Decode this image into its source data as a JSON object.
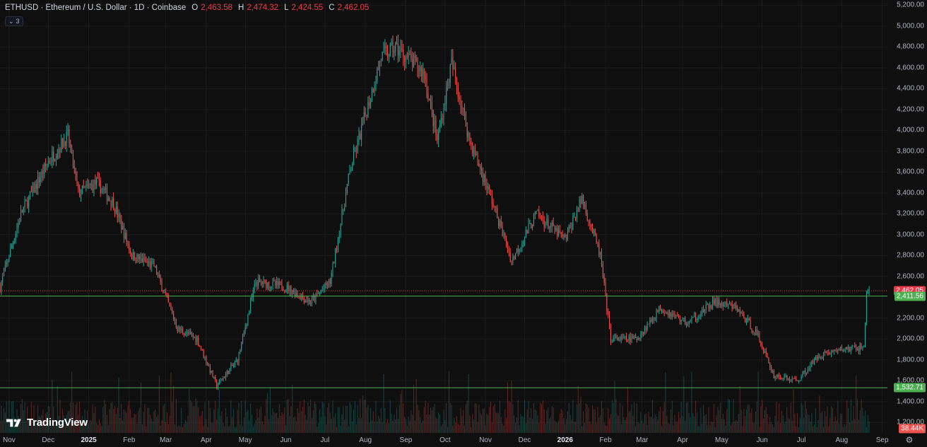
{
  "legend": {
    "symbol_title": "ETHUSD · Ethereum / U.S. Dollar · 1D · Coinbase",
    "o_key": "O",
    "o_val": "2,463.58",
    "h_key": "H",
    "h_val": "2,474.32",
    "l_key": "L",
    "l_val": "2,424.55",
    "c_key": "C",
    "c_val": "2,462.05",
    "indicator_count": "3"
  },
  "price_axis": {
    "ticks": [
      "5,200.00",
      "5,000.00",
      "4,800.00",
      "4,600.00",
      "4,400.00",
      "4,200.00",
      "4,000.00",
      "3,800.00",
      "3,600.00",
      "3,400.00",
      "3,200.00",
      "3,000.00",
      "2,800.00",
      "2,600.00",
      "2,200.00",
      "2,000.00",
      "1,800.00",
      "1,600.00",
      "1,400.00",
      "1,200.00"
    ],
    "last_price_tag": "2,462.05",
    "hline_upper_tag": "2,411.56",
    "hline_lower_tag": "1,532.71",
    "volume_tag": "38.44K"
  },
  "time_axis": [
    {
      "label": "Nov",
      "bold": false
    },
    {
      "label": "Dec",
      "bold": false
    },
    {
      "label": "2025",
      "bold": true
    },
    {
      "label": "Feb",
      "bold": false
    },
    {
      "label": "Mar",
      "bold": false
    },
    {
      "label": "Apr",
      "bold": false
    },
    {
      "label": "May",
      "bold": false
    },
    {
      "label": "Jun",
      "bold": false
    },
    {
      "label": "Jul",
      "bold": false
    },
    {
      "label": "Aug",
      "bold": false
    },
    {
      "label": "Sep",
      "bold": false
    },
    {
      "label": "Oct",
      "bold": false
    },
    {
      "label": "Nov",
      "bold": false
    },
    {
      "label": "Dec",
      "bold": false
    },
    {
      "label": "2026",
      "bold": true
    },
    {
      "label": "Feb",
      "bold": false
    },
    {
      "label": "Mar",
      "bold": false
    },
    {
      "label": "Apr",
      "bold": false
    },
    {
      "label": "May",
      "bold": false
    },
    {
      "label": "Jun",
      "bold": false
    },
    {
      "label": "Jul",
      "bold": false
    },
    {
      "label": "Aug",
      "bold": false
    },
    {
      "label": "Sep",
      "bold": false
    }
  ],
  "logo_text": "TradingView",
  "colors": {
    "up": "#26a69a",
    "down": "#ef5350",
    "hline": "#4caf50",
    "last_price": "#f23645",
    "hline_tag": "#4caf50",
    "background": "#0f0f0f"
  },
  "chart_data": {
    "type": "candlestick",
    "symbol": "ETHUSD",
    "interval": "1D",
    "ylim": [
      1100,
      5250
    ],
    "horizontal_lines": [
      2411.56,
      1532.71
    ],
    "last_close": 2462.05,
    "monthly_path": [
      {
        "date": "2024-10-25",
        "price": 2500
      },
      {
        "date": "2024-11-10",
        "price": 3200
      },
      {
        "date": "2024-12-01",
        "price": 3700
      },
      {
        "date": "2024-12-16",
        "price": 3950
      },
      {
        "date": "2024-12-24",
        "price": 3400
      },
      {
        "date": "2025-01-07",
        "price": 3500
      },
      {
        "date": "2025-01-20",
        "price": 3300
      },
      {
        "date": "2025-02-03",
        "price": 2800
      },
      {
        "date": "2025-02-20",
        "price": 2700
      },
      {
        "date": "2025-03-10",
        "price": 2100
      },
      {
        "date": "2025-03-25",
        "price": 2000
      },
      {
        "date": "2025-04-09",
        "price": 1550
      },
      {
        "date": "2025-04-25",
        "price": 1800
      },
      {
        "date": "2025-05-09",
        "price": 2550
      },
      {
        "date": "2025-06-01",
        "price": 2500
      },
      {
        "date": "2025-06-20",
        "price": 2350
      },
      {
        "date": "2025-07-05",
        "price": 2550
      },
      {
        "date": "2025-07-20",
        "price": 3600
      },
      {
        "date": "2025-08-13",
        "price": 4700
      },
      {
        "date": "2025-08-24",
        "price": 4800
      },
      {
        "date": "2025-09-15",
        "price": 4550
      },
      {
        "date": "2025-09-25",
        "price": 3900
      },
      {
        "date": "2025-10-06",
        "price": 4650
      },
      {
        "date": "2025-10-20",
        "price": 3900
      },
      {
        "date": "2025-11-04",
        "price": 3400
      },
      {
        "date": "2025-11-21",
        "price": 2750
      },
      {
        "date": "2025-12-10",
        "price": 3200
      },
      {
        "date": "2026-01-01",
        "price": 2950
      },
      {
        "date": "2026-01-14",
        "price": 3350
      },
      {
        "date": "2026-01-28",
        "price": 2800
      },
      {
        "date": "2026-02-05",
        "price": 2000
      },
      {
        "date": "2026-02-25",
        "price": 2000
      },
      {
        "date": "2026-03-15",
        "price": 2300
      },
      {
        "date": "2026-04-05",
        "price": 2150
      },
      {
        "date": "2026-04-25",
        "price": 2350
      },
      {
        "date": "2026-05-12",
        "price": 2300
      },
      {
        "date": "2026-05-28",
        "price": 2050
      },
      {
        "date": "2026-06-10",
        "price": 1650
      },
      {
        "date": "2026-06-28",
        "price": 1600
      },
      {
        "date": "2026-07-15",
        "price": 1850
      },
      {
        "date": "2026-08-01",
        "price": 1900
      },
      {
        "date": "2026-08-18",
        "price": 1920
      },
      {
        "date": "2026-08-20",
        "price": 2450
      },
      {
        "date": "2026-08-22",
        "price": 2462
      }
    ]
  }
}
